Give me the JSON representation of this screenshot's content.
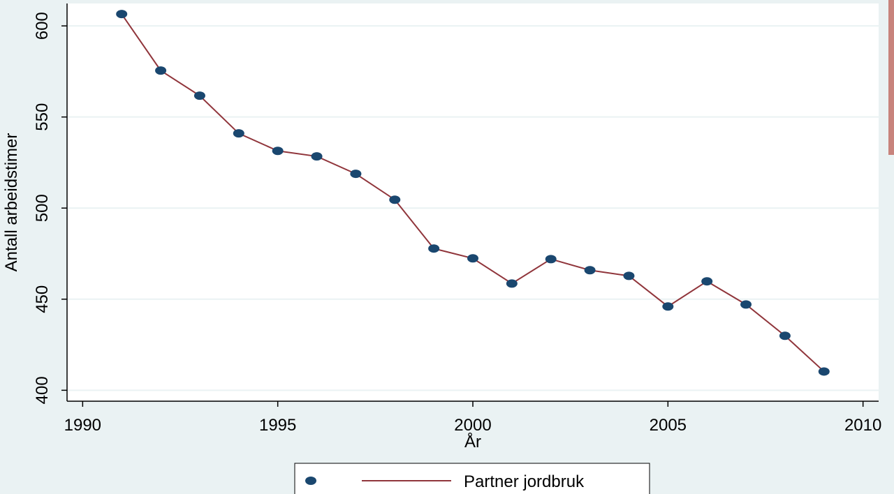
{
  "chart_data": {
    "type": "line",
    "x": [
      1991,
      1992,
      1993,
      1994,
      1995,
      1996,
      1997,
      1998,
      1999,
      2000,
      2001,
      2002,
      2003,
      2004,
      2005,
      2006,
      2007,
      2008,
      2009
    ],
    "series": [
      {
        "name": "Partner jordbruk",
        "color": "#90353b",
        "marker_color": "#1a476f",
        "values": [
          606.5,
          575.5,
          561.7,
          541,
          531.4,
          528.4,
          518.8,
          504.6,
          477.8,
          472.4,
          458.6,
          472,
          465.9,
          462.8,
          446,
          459.8,
          447.1,
          429.9,
          410.3
        ]
      }
    ],
    "xlabel": "År",
    "ylabel": "Antall arbeidstimer",
    "xlim": [
      1989.6,
      2010.4
    ],
    "ylim": [
      394,
      612.3
    ],
    "xticks": [
      1990,
      1995,
      2000,
      2005,
      2010
    ],
    "yticks": [
      400,
      450,
      500,
      550,
      600
    ],
    "grid": true
  }
}
